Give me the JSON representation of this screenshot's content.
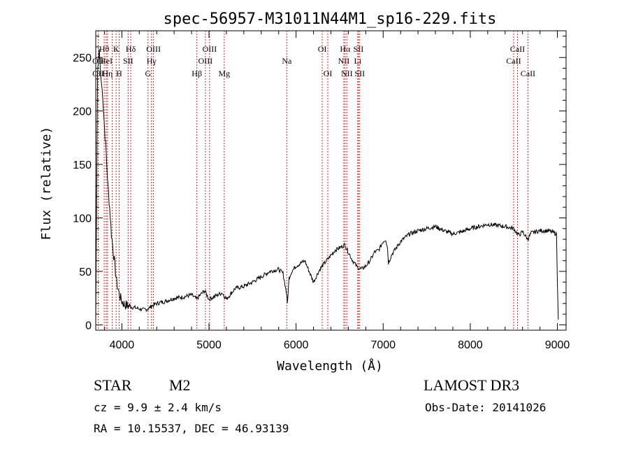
{
  "chart_data": {
    "type": "line",
    "title": "spec-56957-M31011N44M1_sp16-229.fits",
    "xlabel": "Wavelength (Å)",
    "ylabel": "Flux (relative)",
    "xlim": [
      3700,
      9100
    ],
    "ylim": [
      -5,
      275
    ],
    "xticks": [
      4000,
      5000,
      6000,
      7000,
      8000,
      9000
    ],
    "xtick_labels": [
      "4000",
      "5000",
      "6000",
      "7000",
      "8000",
      "9000"
    ],
    "yticks": [
      0,
      50,
      100,
      150,
      200,
      250
    ],
    "ytick_labels": [
      "0",
      "50",
      "100",
      "150",
      "200",
      "250"
    ],
    "series": [
      {
        "name": "spectrum",
        "x": [
          3700,
          3720,
          3740,
          3760,
          3780,
          3800,
          3820,
          3840,
          3860,
          3880,
          3900,
          3920,
          3940,
          3960,
          3980,
          4000,
          4030,
          4060,
          4100,
          4150,
          4200,
          4250,
          4300,
          4350,
          4400,
          4500,
          4600,
          4700,
          4800,
          4860,
          4900,
          4950,
          5000,
          5050,
          5100,
          5150,
          5200,
          5300,
          5400,
          5500,
          5600,
          5700,
          5800,
          5850,
          5890,
          5900,
          5920,
          5950,
          6000,
          6100,
          6150,
          6200,
          6260,
          6300,
          6350,
          6400,
          6450,
          6500,
          6560,
          6600,
          6650,
          6700,
          6750,
          6800,
          6850,
          6900,
          6950,
          7000,
          7030,
          7050,
          7060,
          7100,
          7150,
          7200,
          7300,
          7400,
          7500,
          7600,
          7700,
          7800,
          7900,
          8000,
          8100,
          8200,
          8300,
          8400,
          8500,
          8540,
          8560,
          8600,
          8660,
          8700,
          8800,
          8900,
          8990,
          9000,
          9010
        ],
        "y": [
          0,
          235,
          258,
          230,
          215,
          185,
          160,
          130,
          110,
          85,
          70,
          55,
          40,
          32,
          26,
          22,
          19,
          18,
          17,
          16,
          15,
          14,
          15,
          18,
          20,
          22,
          25,
          26,
          28,
          24,
          28,
          32,
          24,
          26,
          28,
          30,
          24,
          34,
          36,
          40,
          45,
          50,
          52,
          48,
          30,
          20,
          44,
          50,
          55,
          60,
          50,
          40,
          50,
          55,
          60,
          65,
          70,
          72,
          75,
          68,
          60,
          54,
          52,
          55,
          60,
          68,
          70,
          78,
          80,
          72,
          58,
          66,
          72,
          78,
          85,
          88,
          90,
          92,
          88,
          85,
          87,
          90,
          92,
          94,
          93,
          92,
          90,
          85,
          84,
          87,
          80,
          86,
          88,
          88,
          85,
          40,
          5
        ]
      }
    ],
    "lines": [
      {
        "wavelength": 3728,
        "label": "OII",
        "row": 2
      },
      {
        "wavelength": 3728,
        "label": "OII",
        "row": 3
      },
      {
        "wavelength": 3797,
        "label": "Hθ",
        "row": 1
      },
      {
        "wavelength": 3820,
        "label": "HeI",
        "row": 2
      },
      {
        "wavelength": 3835,
        "label": "Hη",
        "row": 3
      },
      {
        "wavelength": 3889,
        "label": "",
        "row": 0
      },
      {
        "wavelength": 3934,
        "label": "K",
        "row": 1
      },
      {
        "wavelength": 3968,
        "label": "H",
        "row": 3
      },
      {
        "wavelength": 4072,
        "label": "SII",
        "row": 2
      },
      {
        "wavelength": 4102,
        "label": "Hδ",
        "row": 1
      },
      {
        "wavelength": 4300,
        "label": "G",
        "row": 3
      },
      {
        "wavelength": 4340,
        "label": "Hγ",
        "row": 2
      },
      {
        "wavelength": 4363,
        "label": "OIII",
        "row": 1
      },
      {
        "wavelength": 4861,
        "label": "Hβ",
        "row": 3
      },
      {
        "wavelength": 4959,
        "label": "OIII",
        "row": 2
      },
      {
        "wavelength": 5007,
        "label": "OIII",
        "row": 1
      },
      {
        "wavelength": 5175,
        "label": "Mg",
        "row": 3
      },
      {
        "wavelength": 5893,
        "label": "Na",
        "row": 2
      },
      {
        "wavelength": 6300,
        "label": "OI",
        "row": 1
      },
      {
        "wavelength": 6364,
        "label": "OI",
        "row": 3
      },
      {
        "wavelength": 6548,
        "label": "NII",
        "row": 2
      },
      {
        "wavelength": 6563,
        "label": "Hα",
        "row": 1
      },
      {
        "wavelength": 6583,
        "label": "NII",
        "row": 3
      },
      {
        "wavelength": 6708,
        "label": "Li",
        "row": 2
      },
      {
        "wavelength": 6716,
        "label": "SII",
        "row": 1
      },
      {
        "wavelength": 6731,
        "label": "SII",
        "row": 3
      },
      {
        "wavelength": 8498,
        "label": "CaII",
        "row": 2
      },
      {
        "wavelength": 8542,
        "label": "CaII",
        "row": 1
      },
      {
        "wavelength": 8662,
        "label": "CaII",
        "row": 3
      }
    ]
  },
  "info": {
    "object_class": "STAR",
    "subclass": "M2",
    "survey": "LAMOST DR3",
    "redshift": "cz =  9.9 ±  2.4 km/s",
    "obs_date": "Obs-Date: 20141026",
    "coords": "RA =   10.15537, DEC =   46.93139"
  },
  "colors": {
    "line_marker": "#cc2222",
    "spectrum": "#000000",
    "axes": "#000000"
  }
}
